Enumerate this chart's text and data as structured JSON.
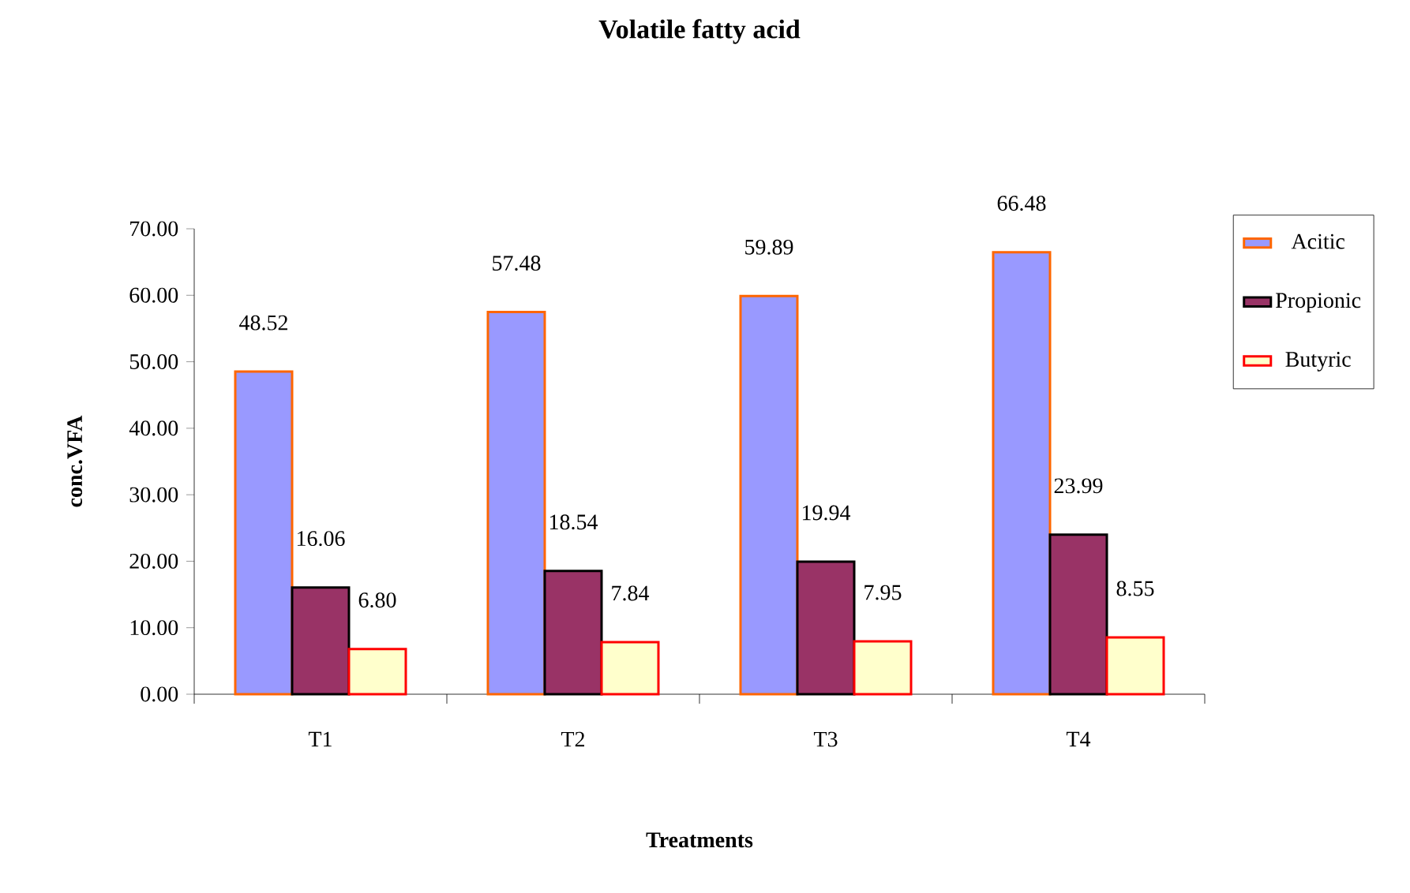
{
  "chart_data": {
    "type": "bar",
    "title": "Volatile fatty acid",
    "xlabel": "Treatments",
    "ylabel": "conc.VFA",
    "categories": [
      "T1",
      "T2",
      "T3",
      "T4"
    ],
    "series": [
      {
        "name": "Acitic",
        "color": "#9999ff",
        "values": [
          48.52,
          57.48,
          59.89,
          66.48
        ],
        "value_labels": [
          "48.52",
          "57.48",
          "59.89",
          "66.48"
        ]
      },
      {
        "name": "Propionic",
        "color": "#993366",
        "values": [
          16.06,
          18.54,
          19.94,
          23.99
        ],
        "value_labels": [
          "16.06",
          "18.54",
          "19.94",
          "23.99"
        ]
      },
      {
        "name": "Butyric",
        "color": "#ffffcc",
        "values": [
          6.8,
          7.84,
          7.95,
          8.55
        ],
        "value_labels": [
          "6.80",
          "7.84",
          "7.95",
          "8.55"
        ]
      }
    ],
    "ylim": [
      0,
      70
    ],
    "yticks": [
      {
        "value": 0,
        "label": "0.00"
      },
      {
        "value": 10,
        "label": "10.00"
      },
      {
        "value": 20,
        "label": "20.00"
      },
      {
        "value": 30,
        "label": "30.00"
      },
      {
        "value": 40,
        "label": "40.00"
      },
      {
        "value": 50,
        "label": "50.00"
      },
      {
        "value": 60,
        "label": "60.00"
      },
      {
        "value": 70,
        "label": "70.00"
      }
    ],
    "grid": false,
    "legend": "right"
  }
}
